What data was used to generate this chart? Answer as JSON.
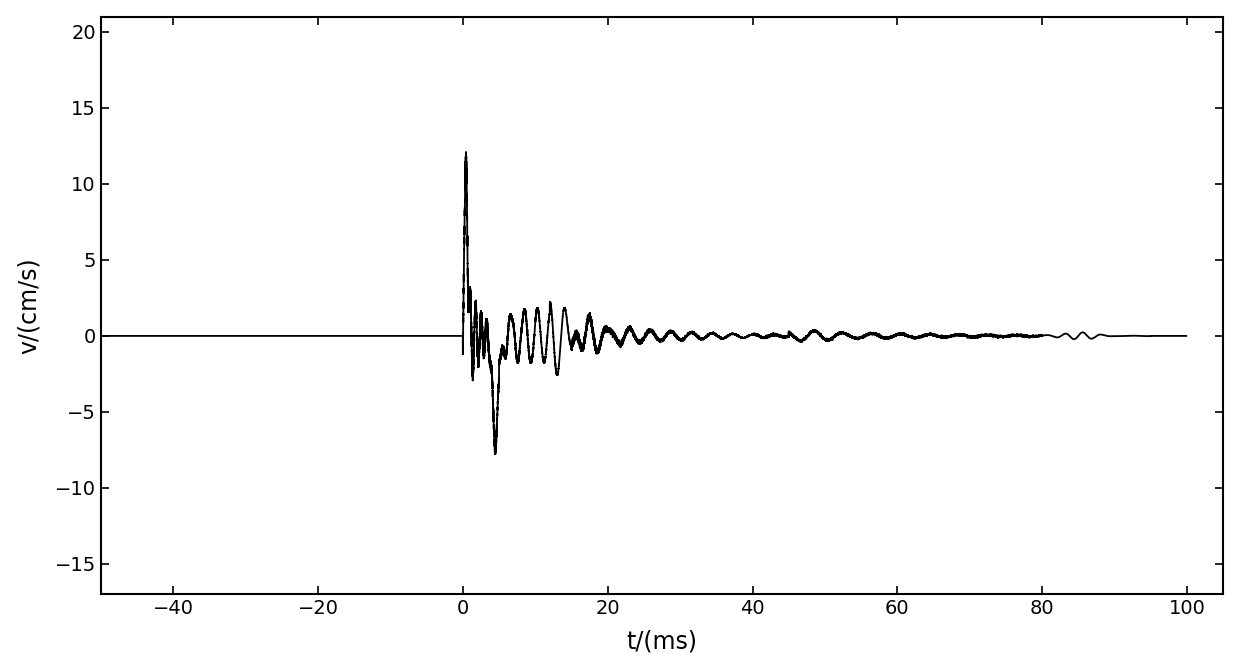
{
  "xlim": [
    -50,
    105
  ],
  "ylim": [
    -17,
    21
  ],
  "xticks": [
    -40,
    -20,
    0,
    20,
    40,
    60,
    80,
    100
  ],
  "yticks": [
    -15,
    -10,
    -5,
    0,
    5,
    10,
    15,
    20
  ],
  "xlabel": "t/(ms)",
  "ylabel": "v/(cm/s)",
  "line_color": "#000000",
  "line_width": 1.3,
  "background_color": "#ffffff",
  "figsize": [
    12.4,
    6.7
  ],
  "dpi": 100
}
